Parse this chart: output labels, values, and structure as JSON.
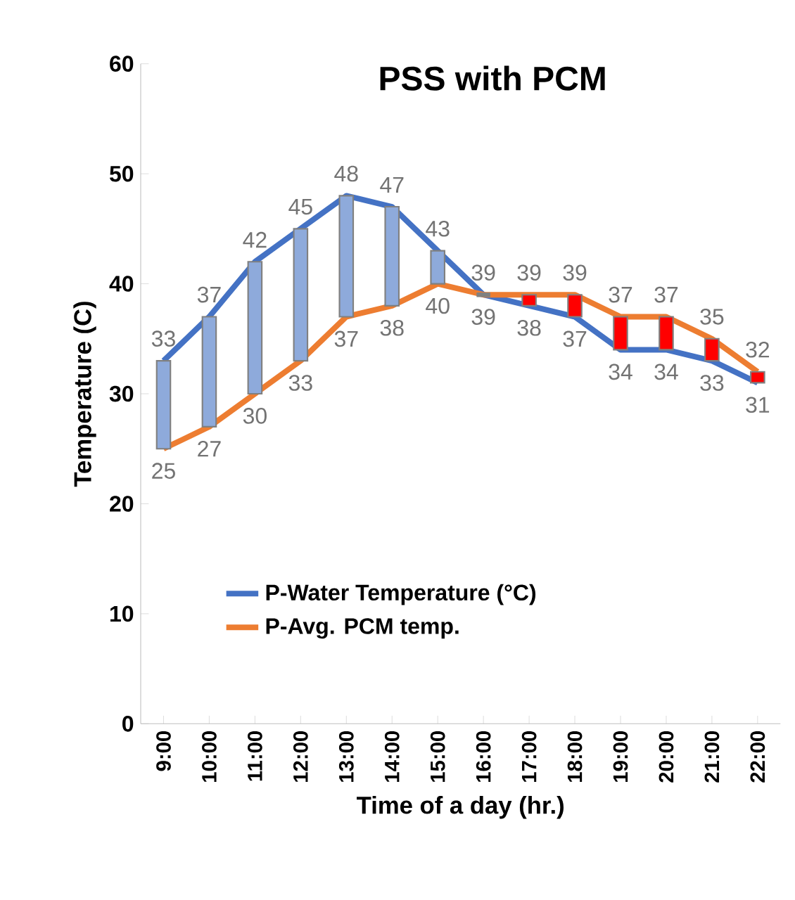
{
  "chart_data": {
    "type": "line",
    "title": "PSS with PCM",
    "xlabel": "Time of a day (hr.)",
    "ylabel": "Temperature (C)",
    "categories": [
      "9:00",
      "10:00",
      "11:00",
      "12:00",
      "13:00",
      "14:00",
      "15:00",
      "16:00",
      "17:00",
      "18:00",
      "19:00",
      "20:00",
      "21:00",
      "22:00"
    ],
    "series": [
      {
        "name": "P-Water Temperature (°C)",
        "color": "#4472c4",
        "values": [
          33,
          37,
          42,
          45,
          48,
          47,
          43,
          39,
          38,
          37,
          34,
          34,
          33,
          31
        ],
        "value_labels": [
          "33",
          "37",
          "42",
          "45",
          "48",
          "47",
          "43",
          "39",
          "38",
          "37",
          "34",
          "34",
          "33",
          "31"
        ]
      },
      {
        "name": "P-Avg. PCM temp.",
        "color": "#ed7d31",
        "values": [
          25,
          27,
          30,
          33,
          37,
          38,
          40,
          39,
          39,
          39,
          37,
          37,
          35,
          32
        ],
        "value_labels": [
          "25",
          "27",
          "30",
          "33",
          "37",
          "38",
          "40",
          "39",
          "39",
          "39",
          "37",
          "37",
          "35",
          "32"
        ]
      },
      {
        "type": "bar",
        "base": [
          25,
          27,
          30,
          33,
          37,
          38,
          40,
          39,
          39,
          39,
          37,
          37,
          35,
          32
        ],
        "values": [
          8,
          10,
          12,
          12,
          11,
          9,
          3,
          0,
          -1,
          -2,
          -3,
          -3,
          -2,
          -1
        ],
        "colors": [
          "#8eaadb",
          "#8eaadb",
          "#8eaadb",
          "#8eaadb",
          "#8eaadb",
          "#8eaadb",
          "#8eaadb",
          "#808080",
          "#ff0000",
          "#ff0000",
          "#ff0000",
          "#ff0000",
          "#ff0000",
          "#ff0000"
        ]
      }
    ],
    "ylim": [
      0,
      60
    ],
    "yticks": [
      0,
      10,
      20,
      30,
      40,
      50,
      60
    ],
    "legend": "bottom",
    "grid": false,
    "line_style": "solid",
    "marker": "none"
  }
}
